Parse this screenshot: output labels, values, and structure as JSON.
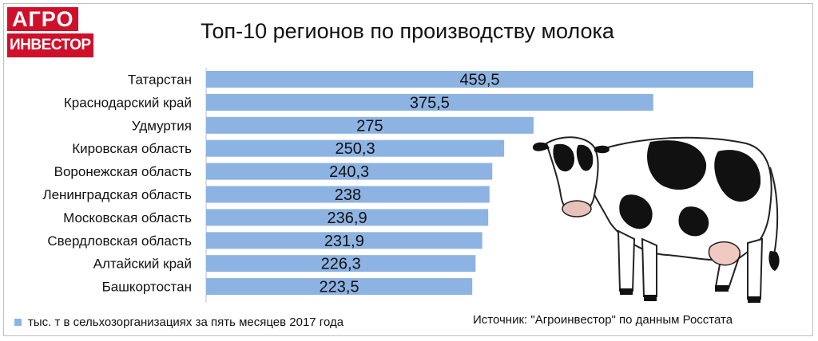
{
  "logo": {
    "line1": "АГРО",
    "line2": "ИНВЕСТОР"
  },
  "colors": {
    "bar": "#8db3e2",
    "logo": "#d0102a",
    "grid": "#bfbfbf"
  },
  "legend": {
    "label": "тыс. т в сельхозорганизациях за пять месяцев 2017 года"
  },
  "source": "Источник: \"Агроинвестор\" по данным Росстата",
  "chart_data": {
    "type": "bar",
    "orientation": "horizontal",
    "title": "Топ-10 регионов по производству молока",
    "categories": [
      "Татарстан",
      "Краснодарский край",
      "Удмуртия",
      "Кировская область",
      "Воронежская область",
      "Ленинградская область",
      "Московская область",
      "Свердловская область",
      "Алтайский край",
      "Башкортостан"
    ],
    "values": [
      459.5,
      375.5,
      275,
      250.3,
      240.3,
      238,
      236.9,
      231.9,
      226.3,
      223.5
    ],
    "value_labels": [
      "459,5",
      "375,5",
      "275",
      "250,3",
      "240,3",
      "238",
      "236,9",
      "231,9",
      "226,3",
      "223,5"
    ],
    "xlim": [
      0,
      470
    ],
    "grid": false,
    "legend_position": "bottom-left"
  }
}
